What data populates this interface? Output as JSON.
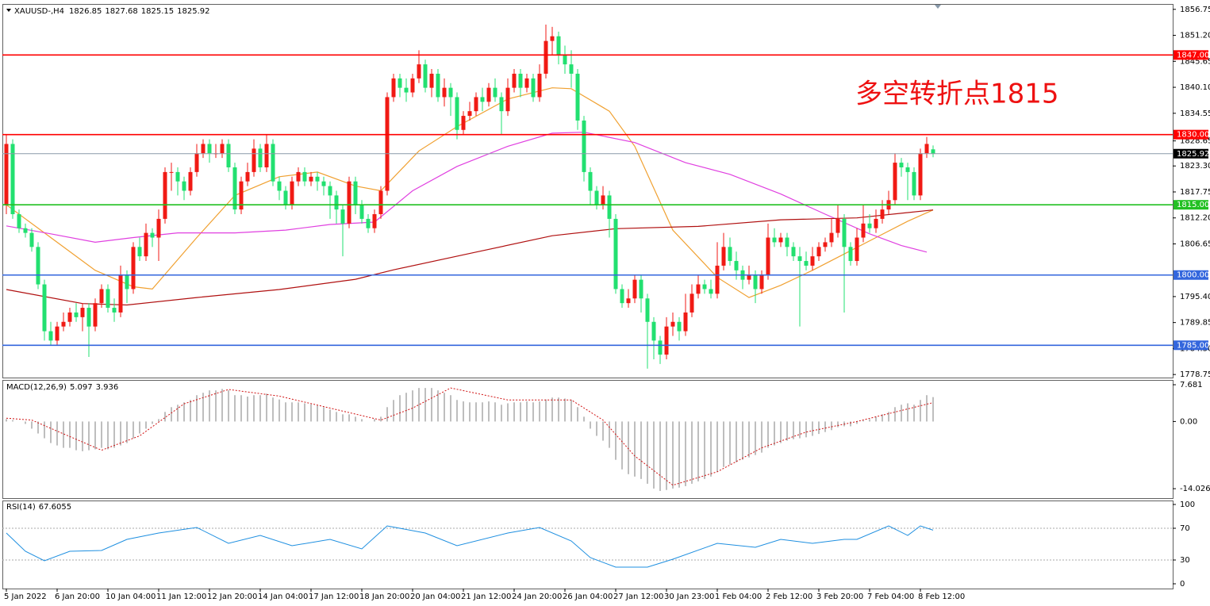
{
  "chart_data": {
    "type": "candlestick",
    "title": "XAUUSD-,H4",
    "annotation": "多空转折点1815",
    "up_color": "#f01a14",
    "down_color": "#22e070",
    "xlim": [
      -0.625,
      183.75
    ],
    "xticks": [
      {
        "value": 0,
        "label": "5 Jan 2022"
      },
      {
        "value": 8,
        "label": "6 Jan 20:00"
      },
      {
        "value": 16,
        "label": "10 Jan 04:00"
      },
      {
        "value": 24,
        "label": "11 Jan 12:00"
      },
      {
        "value": 32,
        "label": "12 Jan 20:00"
      },
      {
        "value": 40,
        "label": "14 Jan 04:00"
      },
      {
        "value": 48,
        "label": "17 Jan 12:00"
      },
      {
        "value": 56,
        "label": "18 Jan 20:00"
      },
      {
        "value": 64,
        "label": "20 Jan 04:00"
      },
      {
        "value": 72,
        "label": "21 Jan 12:00"
      },
      {
        "value": 80,
        "label": "24 Jan 20:00"
      },
      {
        "value": 88,
        "label": "26 Jan 04:00"
      },
      {
        "value": 96,
        "label": "27 Jan 12:00"
      },
      {
        "value": 104,
        "label": "30 Jan 23:00"
      },
      {
        "value": 112,
        "label": "1 Feb 04:00"
      },
      {
        "value": 120,
        "label": "2 Feb 12:00"
      },
      {
        "value": 128,
        "label": "3 Feb 20:00"
      },
      {
        "value": 136,
        "label": "7 Feb 04:00"
      },
      {
        "value": 144,
        "label": "8 Feb 12:00"
      }
    ],
    "ylim": [
      1778.1,
      1857.9
    ],
    "yticks": [
      1856.75,
      {
        "value": 1851.2,
        "label": "1851.20"
      },
      1845.65,
      {
        "value": 1840.1,
        "label": "1840.10"
      },
      1834.55,
      1828.65,
      {
        "value": 1823.3,
        "label": "1823.30"
      },
      1817.75,
      {
        "value": 1812.2,
        "label": "1812.20"
      },
      1806.65,
      {
        "value": 1795.4,
        "label": "1795.40"
      },
      1789.85,
      {
        "value": 1784.3,
        "label": "1784.30"
      },
      1778.75
    ],
    "open": [
      1815,
      1828,
      1813,
      1810,
      1809,
      1806,
      1798,
      1788,
      1786,
      1789,
      1790,
      1792,
      1791,
      1793,
      1789,
      1794,
      1797,
      1793,
      1792,
      1800,
      1797,
      1806,
      1804,
      1809,
      1808,
      1812,
      1822,
      1822,
      1820,
      1818,
      1822,
      1826,
      1828,
      1826,
      1826,
      1828,
      1823,
      1814,
      1820,
      1822,
      1827,
      1823,
      1828,
      1820,
      1818,
      1815,
      1820,
      1822,
      1820,
      1821,
      1820,
      1819,
      1817,
      1814,
      1811,
      1820,
      1815,
      1812,
      1810,
      1813,
      1818,
      1838,
      1842,
      1840,
      1839,
      1842,
      1845,
      1840,
      1843,
      1838,
      1840,
      1838,
      1831,
      1834,
      1835,
      1838,
      1837,
      1840,
      1838,
      1835,
      1840,
      1843,
      1840,
      1842,
      1838,
      1843,
      1850,
      1851,
      1847,
      1845,
      1843,
      1833,
      1822,
      1818,
      1815,
      1817,
      1812,
      1797,
      1794,
      1795,
      1799,
      1795,
      1790,
      1786,
      1783,
      1789,
      1790,
      1788,
      1792,
      1796,
      1798,
      1797,
      1796,
      1802,
      1806,
      1803,
      1801,
      1799,
      1800,
      1797,
      1800,
      1808,
      1807,
      1808,
      1806,
      1804,
      1803,
      1802,
      1804,
      1806,
      1807,
      1809,
      1812,
      1806,
      1803,
      1808,
      1811,
      1810,
      1812,
      1814,
      1816,
      1824,
      1823,
      1822,
      1817,
      1826,
      1826.85
    ],
    "high": [
      1830,
      1829,
      1814,
      1811,
      1810,
      1807,
      1799,
      1790,
      1790,
      1792,
      1793,
      1794,
      1794,
      1794,
      1795,
      1798,
      1798,
      1795,
      1802,
      1801,
      1807,
      1808,
      1811,
      1810,
      1814,
      1823,
      1824,
      1823,
      1821,
      1823,
      1828,
      1829,
      1829,
      1828,
      1829,
      1829,
      1824,
      1821,
      1824,
      1829,
      1828,
      1830,
      1829,
      1821,
      1819,
      1821,
      1823,
      1823,
      1822,
      1822,
      1821,
      1820,
      1818,
      1815,
      1821,
      1821,
      1816,
      1813,
      1814,
      1819,
      1839,
      1843,
      1843,
      1842,
      1843,
      1848,
      1846,
      1844,
      1844,
      1842,
      1841,
      1839,
      1835,
      1837,
      1839,
      1840,
      1841,
      1842,
      1839,
      1842,
      1844,
      1844,
      1843,
      1843,
      1845,
      1853.5,
      1853,
      1852,
      1849,
      1848,
      1844,
      1834,
      1823,
      1819,
      1819,
      1818,
      1813,
      1798,
      1797,
      1800,
      1800,
      1796,
      1791,
      1787,
      1791,
      1792,
      1791,
      1796,
      1798,
      1800,
      1799,
      1799,
      1807,
      1809,
      1808,
      1805,
      1802,
      1802,
      1801,
      1801,
      1811,
      1810,
      1809,
      1809,
      1807,
      1806,
      1805,
      1806,
      1807,
      1808,
      1812,
      1815,
      1813,
      1807,
      1810,
      1815,
      1813,
      1814,
      1816,
      1818,
      1826,
      1825,
      1824,
      1823,
      1827,
      1829.5,
      1827.68
    ],
    "low": [
      1813,
      1812,
      1809,
      1808,
      1805,
      1797,
      1786,
      1785,
      1785,
      1788,
      1789,
      1790,
      1788,
      1782.5,
      1788,
      1793,
      1792,
      1790,
      1791,
      1794,
      1796,
      1803,
      1803,
      1806,
      1803,
      1811,
      1818,
      1817,
      1816,
      1817,
      1821,
      1825,
      1824,
      1825,
      1825,
      1822,
      1813,
      1813,
      1819,
      1821,
      1822,
      1822,
      1819,
      1816,
      1814,
      1814,
      1819,
      1819,
      1819,
      1818,
      1817,
      1812,
      1811,
      1804,
      1810,
      1813,
      1811,
      1809,
      1809,
      1812,
      1817,
      1837,
      1838,
      1837,
      1838,
      1841,
      1839,
      1838,
      1837,
      1836,
      1834,
      1829,
      1830,
      1833,
      1834,
      1835,
      1836,
      1837,
      1830,
      1834,
      1839,
      1838,
      1839,
      1837,
      1837,
      1842,
      1847,
      1845,
      1843,
      1840,
      1831,
      1820,
      1815,
      1814,
      1814,
      1808,
      1796,
      1793,
      1793,
      1794,
      1792,
      1780,
      1782,
      1781,
      1782,
      1787,
      1786,
      1787,
      1791,
      1795,
      1796,
      1795,
      1795,
      1801,
      1802,
      1799,
      1797,
      1798,
      1794,
      1796,
      1799,
      1806,
      1806,
      1804,
      1803,
      1789,
      1801,
      1801,
      1803,
      1805,
      1806,
      1808,
      1792,
      1802,
      1802,
      1807,
      1809,
      1809,
      1811,
      1813,
      1815,
      1821,
      1816,
      1816,
      1816,
      1825,
      1825.15
    ],
    "close": [
      1828,
      1813,
      1810,
      1809,
      1806,
      1798,
      1788,
      1786,
      1789,
      1790,
      1792,
      1791,
      1793,
      1789,
      1794,
      1797,
      1793,
      1792,
      1800,
      1797,
      1806,
      1804,
      1809,
      1808,
      1812,
      1822,
      1822,
      1820,
      1818,
      1822,
      1826,
      1828,
      1826,
      1826,
      1828,
      1823,
      1814,
      1820,
      1822,
      1827,
      1823,
      1828,
      1820,
      1818,
      1815,
      1820,
      1822,
      1820,
      1821,
      1820,
      1819,
      1817,
      1814,
      1811,
      1820,
      1815,
      1812,
      1810,
      1813,
      1818,
      1838,
      1842,
      1840,
      1839,
      1842,
      1845,
      1840,
      1843,
      1838,
      1840,
      1838,
      1831,
      1834,
      1835,
      1838,
      1837,
      1840,
      1838,
      1835,
      1840,
      1843,
      1840,
      1842,
      1838,
      1843,
      1850,
      1851,
      1847,
      1845,
      1843,
      1833,
      1822,
      1818,
      1815,
      1817,
      1812,
      1797,
      1794,
      1795,
      1799,
      1795,
      1790,
      1786,
      1783,
      1789,
      1790,
      1788,
      1792,
      1796,
      1798,
      1797,
      1796,
      1802,
      1806,
      1803,
      1801,
      1799,
      1800,
      1797,
      1800,
      1808,
      1807,
      1808,
      1806,
      1804,
      1803,
      1802,
      1804,
      1806,
      1807,
      1809,
      1812,
      1806,
      1803,
      1808,
      1811,
      1810,
      1812,
      1814,
      1816,
      1824,
      1823,
      1822,
      1817,
      1826,
      1828,
      1825.92
    ],
    "moving_averages": [
      {
        "color": "#f0a030",
        "x": [
          0,
          7,
          14,
          20,
          23,
          30,
          36,
          43,
          49,
          55,
          59,
          65,
          71,
          79,
          86,
          89,
          95,
          99,
          105,
          112,
          117,
          122,
          127,
          132,
          137,
          142,
          146
        ],
        "values": [
          1815,
          1808,
          1801,
          1797.5,
          1797,
          1808,
          1817,
          1821,
          1822,
          1819,
          1818,
          1826.5,
          1831.7,
          1837.6,
          1840,
          1839.8,
          1835,
          1827.5,
          1809.6,
          1799.5,
          1795.2,
          1797.8,
          1801,
          1804.5,
          1808,
          1811.5,
          1813.9
        ]
      },
      {
        "color": "#e040e0",
        "x": [
          0,
          7,
          14,
          20,
          27,
          36,
          44,
          51,
          58,
          64,
          71,
          79,
          86,
          91,
          99,
          107,
          114,
          122,
          129,
          136,
          141,
          145
        ],
        "values": [
          1810.5,
          1808.8,
          1807,
          1808,
          1809,
          1809,
          1809.6,
          1810.8,
          1811.3,
          1818,
          1823.2,
          1827.5,
          1830.3,
          1830.5,
          1828.3,
          1824,
          1821.5,
          1817.3,
          1813,
          1808.8,
          1806.3,
          1804.9
        ]
      },
      {
        "color": "#b01010",
        "x": [
          0,
          12,
          19,
          30,
          43,
          55,
          61,
          74,
          86,
          96,
          109,
          122,
          134,
          146
        ],
        "values": [
          1796.9,
          1793.9,
          1793.6,
          1795.2,
          1796.9,
          1799.1,
          1801.1,
          1804.9,
          1808.4,
          1809.9,
          1810.4,
          1811.8,
          1812.2,
          1813.9
        ]
      }
    ],
    "levels": [
      {
        "value": 1847,
        "label": "1847.00",
        "color": "#ff0000"
      },
      {
        "value": 1830,
        "label": "1830.00",
        "color": "#ff0000"
      },
      {
        "value": 1825.92,
        "color": "#8a9aa8",
        "box_color": "#000000"
      },
      {
        "value": 1815,
        "label": "1815.00",
        "color": "#22c022"
      },
      {
        "value": 1800,
        "label": "1800.00",
        "color": "#3366dd"
      },
      {
        "value": 1785,
        "label": "1785.00",
        "color": "#3366dd"
      }
    ],
    "macd": {
      "label": "MACD(12,26,9)",
      "main": 5.097,
      "signal_value": 3.936,
      "ylim": [
        -16,
        8.68
      ],
      "yticks": [
        7.681,
        {
          "value": 0,
          "label": "0.00"
        },
        -14.026
      ],
      "histogram": [
        0.5,
        0.3,
        0,
        -0.5,
        -1.5,
        -2.5,
        -3.5,
        -4.5,
        -5,
        -5.5,
        -5.5,
        -6,
        -6.2,
        -6,
        -5.8,
        -5.5,
        -5.8,
        -5.5,
        -5,
        -4.5,
        -3.5,
        -2.5,
        -1.5,
        -0.5,
        0.5,
        2,
        3,
        3.5,
        4,
        4.5,
        5.5,
        6,
        6.5,
        6.5,
        6.8,
        6.5,
        5.5,
        5.5,
        5.2,
        5.5,
        5.5,
        5.8,
        5,
        4.6,
        4,
        4,
        4,
        3.8,
        3.6,
        3.3,
        3,
        2.5,
        2,
        1.5,
        1.5,
        1,
        0.5,
        0,
        0.5,
        1,
        3,
        4.5,
        5.5,
        6,
        6.5,
        7,
        7,
        7,
        6.5,
        6,
        5.5,
        4.5,
        4.2,
        4,
        4,
        4,
        4.2,
        4,
        3.5,
        3.8,
        4,
        4,
        4.2,
        4,
        4.2,
        4.6,
        5,
        5,
        4.8,
        4.5,
        3,
        1,
        -1.5,
        -3,
        -4,
        -5.5,
        -8,
        -10,
        -11,
        -11.5,
        -12,
        -13,
        -14,
        -14.5,
        -14.3,
        -14,
        -13.8,
        -13.5,
        -13,
        -12.5,
        -12,
        -11.5,
        -10.5,
        -9.5,
        -9,
        -8.5,
        -8,
        -7.5,
        -7,
        -6.5,
        -5.5,
        -5,
        -4.5,
        -4,
        -3.7,
        -3.5,
        -3.3,
        -3,
        -2.6,
        -2.2,
        -1.8,
        -1.2,
        -1,
        -1,
        -0.5,
        0.2,
        0.5,
        1,
        1.5,
        2,
        3,
        3.5,
        3.8,
        3.5,
        4.5,
        5.5,
        5.097
      ],
      "histogram_color": "#a8a8a8",
      "signal": {
        "color": "#d01010",
        "x": [
          0,
          4,
          8,
          15,
          21,
          28,
          35,
          43,
          51,
          59,
          64,
          70,
          79,
          89,
          94,
          99,
          105,
          112,
          119,
          126,
          134,
          146
        ],
        "values": [
          0.7,
          0.3,
          -2,
          -6,
          -3,
          3.7,
          6.7,
          5.3,
          2.8,
          0.3,
          2.8,
          7,
          4.5,
          4.5,
          0.3,
          -7.2,
          -13.3,
          -10.5,
          -5.5,
          -2.2,
          0,
          3.936
        ]
      }
    },
    "rsi": {
      "label": "RSI(14)",
      "value": 67.6055,
      "color": "#1e8fe0",
      "ylim": [
        -6,
        105
      ],
      "yticks": [
        100,
        70,
        30,
        0
      ],
      "levels": [
        70,
        30
      ],
      "x": [
        0,
        3,
        6,
        10,
        15,
        19,
        24,
        30,
        35,
        40,
        45,
        51,
        56,
        60,
        66,
        71,
        79,
        84,
        89,
        92,
        96,
        101,
        105,
        112,
        118,
        122,
        127,
        132,
        134,
        139,
        142,
        144,
        146
      ],
      "values": [
        64,
        41,
        29,
        41,
        42,
        56,
        64,
        71,
        51,
        61,
        48,
        56,
        44,
        73,
        64,
        48,
        64,
        71,
        54,
        33,
        21,
        21,
        31,
        51,
        46,
        56,
        51,
        56,
        56,
        73,
        61,
        73,
        67.6055
      ]
    }
  }
}
